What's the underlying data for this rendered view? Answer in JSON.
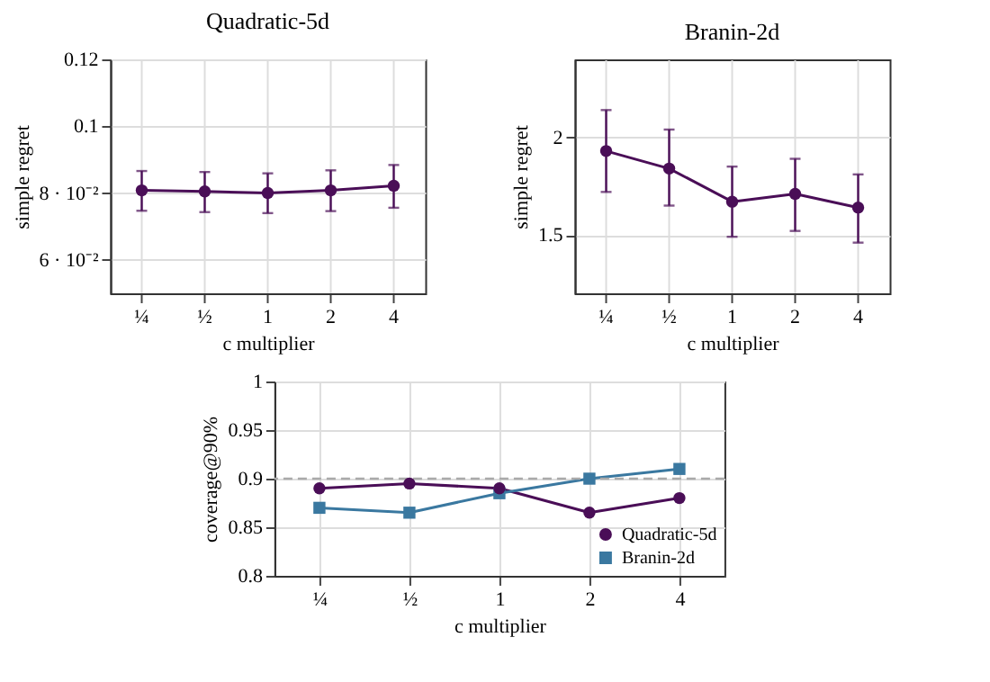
{
  "chart_data": [
    {
      "type": "line",
      "title": "Quadratic-5d",
      "xlabel": "c multiplier",
      "ylabel": "simple regret",
      "categories": [
        "¼",
        "½",
        "1",
        "2",
        "4"
      ],
      "series": [
        {
          "color": "#4a0e57",
          "values": [
            0.0808,
            0.0805,
            0.08,
            0.0808,
            0.0822
          ],
          "errors": [
            [
              0.0747,
              0.0866
            ],
            [
              0.0743,
              0.0863
            ],
            [
              0.074,
              0.0859
            ],
            [
              0.0746,
              0.0868
            ],
            [
              0.0756,
              0.0884
            ]
          ]
        }
      ],
      "ylim": [
        0.05,
        0.12
      ],
      "yticks": [
        {
          "value": 0.06,
          "label": "6 · 10⁻²"
        },
        {
          "value": 0.08,
          "label": "8 · 10⁻²"
        },
        0.1,
        0.12
      ],
      "grid": true,
      "marker": "circle"
    },
    {
      "type": "line",
      "title": "Branin-2d",
      "xlabel": "c multiplier",
      "ylabel": "simple regret",
      "categories": [
        "¼",
        "½",
        "1",
        "2",
        "4"
      ],
      "series": [
        {
          "color": "#4a0e57",
          "values": [
            1.93,
            1.84,
            1.67,
            1.71,
            1.64
          ],
          "errors": [
            [
              1.72,
              2.14
            ],
            [
              1.65,
              2.04
            ],
            [
              1.49,
              1.85
            ],
            [
              1.52,
              1.89
            ],
            [
              1.46,
              1.81
            ]
          ]
        }
      ],
      "ylim": [
        1.2,
        2.4
      ],
      "yticks": [
        1.5,
        2
      ],
      "grid": true,
      "marker": "circle"
    },
    {
      "type": "line",
      "xlabel": "c multiplier",
      "ylabel": "coverage@90%",
      "categories": [
        "¼",
        "½",
        "1",
        "2",
        "4"
      ],
      "series": [
        {
          "name": "Quadratic-5d",
          "color": "#4a0e57",
          "marker": "circle",
          "values": [
            0.89,
            0.895,
            0.89,
            0.865,
            0.88
          ]
        },
        {
          "name": "Branin-2d",
          "color": "#3a78a0",
          "marker": "square",
          "values": [
            0.87,
            0.865,
            0.885,
            0.9,
            0.91
          ]
        }
      ],
      "ylim": [
        0.8,
        1
      ],
      "yticks": [
        0.8,
        0.85,
        0.9,
        0.95,
        1
      ],
      "grid": true,
      "legend": "bottom right",
      "ref_lines": [
        {
          "axis": "y",
          "value": 0.9,
          "color": "#aaaaaa",
          "line_style": "dashed"
        }
      ]
    }
  ]
}
